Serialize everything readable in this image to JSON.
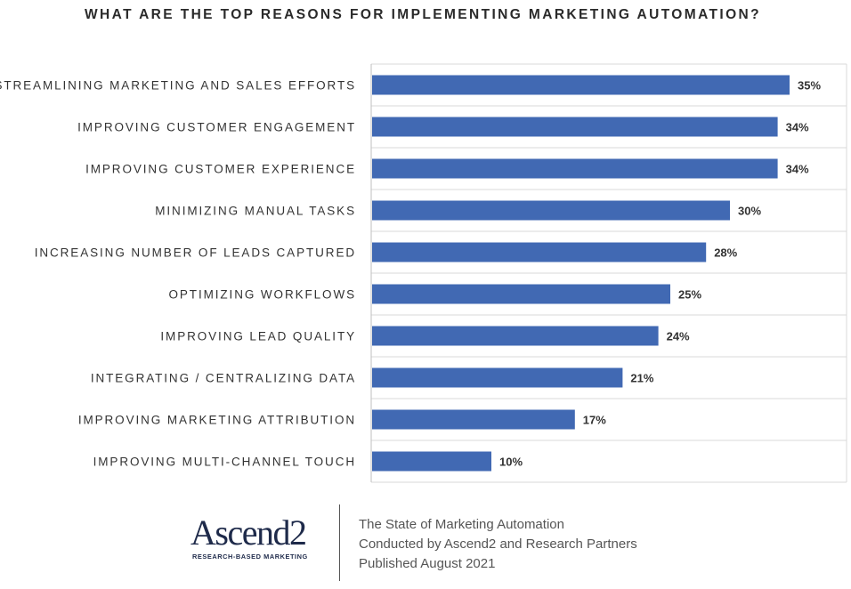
{
  "chart_data": {
    "type": "bar",
    "orientation": "horizontal",
    "title": "WHAT ARE THE TOP REASONS FOR IMPLEMENTING MARKETING AUTOMATION?",
    "categories": [
      "STREAMLINING MARKETING AND SALES EFFORTS",
      "IMPROVING CUSTOMER ENGAGEMENT",
      "IMPROVING CUSTOMER EXPERIENCE",
      "MINIMIZING MANUAL TASKS",
      "INCREASING NUMBER OF LEADS CAPTURED",
      "OPTIMIZING WORKFLOWS",
      "IMPROVING LEAD QUALITY",
      "INTEGRATING / CENTRALIZING DATA",
      "IMPROVING MARKETING ATTRIBUTION",
      "IMPROVING MULTI-CHANNEL TOUCH"
    ],
    "values": [
      35,
      34,
      34,
      30,
      28,
      25,
      24,
      21,
      17,
      10
    ],
    "value_labels": [
      "35%",
      "34%",
      "34%",
      "30%",
      "28%",
      "25%",
      "24%",
      "21%",
      "17%",
      "10%"
    ],
    "xlim": [
      0,
      40
    ],
    "grid": "horizontal",
    "bar_color": "#4169b3",
    "xlabel": "",
    "ylabel": ""
  },
  "footer": {
    "logo_text": "Ascend2",
    "logo_tagline": "RESEARCH-BASED MARKETING",
    "lines": [
      "The State of Marketing Automation",
      "Conducted by Ascend2 and Research Partners",
      "Published August 2021"
    ]
  }
}
